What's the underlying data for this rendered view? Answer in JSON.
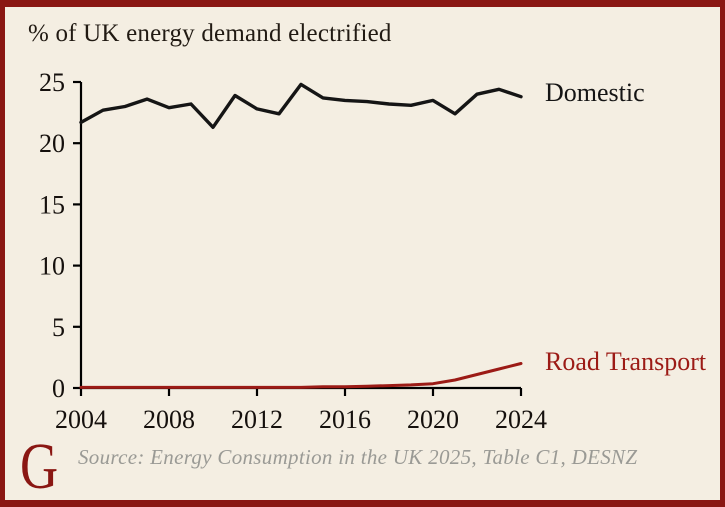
{
  "title": "% of UK energy demand electrified",
  "source": "Source: Energy Consumption in the UK 2025, Table C1, DESNZ",
  "logo": "G",
  "colors": {
    "background": "#f4eee2",
    "frame": "#8a1713",
    "axis": "#000000",
    "title_text": "#211a13",
    "tick_text": "#15100d",
    "source_text": "#9a9a95",
    "logo_red": "#8a1713"
  },
  "chart_data": {
    "type": "line",
    "x": [
      2004,
      2005,
      2006,
      2007,
      2008,
      2009,
      2010,
      2011,
      2012,
      2013,
      2014,
      2015,
      2016,
      2017,
      2018,
      2019,
      2020,
      2021,
      2022,
      2023,
      2024
    ],
    "series": [
      {
        "name": "Domestic",
        "color": "#151515",
        "values": [
          21.7,
          22.7,
          23.0,
          23.6,
          22.9,
          23.2,
          21.3,
          23.9,
          22.8,
          22.4,
          24.8,
          23.7,
          23.5,
          23.4,
          23.2,
          23.1,
          23.5,
          22.4,
          24.0,
          24.4,
          23.8
        ]
      },
      {
        "name": "Road Transport",
        "color": "#9c1b16",
        "values": [
          0.05,
          0.05,
          0.05,
          0.05,
          0.05,
          0.05,
          0.05,
          0.05,
          0.05,
          0.05,
          0.05,
          0.1,
          0.1,
          0.15,
          0.2,
          0.25,
          0.35,
          0.65,
          1.1,
          1.55,
          2.0
        ]
      }
    ],
    "title": "% of UK energy demand electrified",
    "xlabel": "",
    "ylabel": "",
    "xlim": [
      2004,
      2024
    ],
    "ylim": [
      0,
      25
    ],
    "xticks": [
      2004,
      2008,
      2012,
      2016,
      2020,
      2024
    ],
    "yticks": [
      0,
      5,
      10,
      15,
      20,
      25
    ],
    "grid": false,
    "legend_position": "inline-right"
  }
}
